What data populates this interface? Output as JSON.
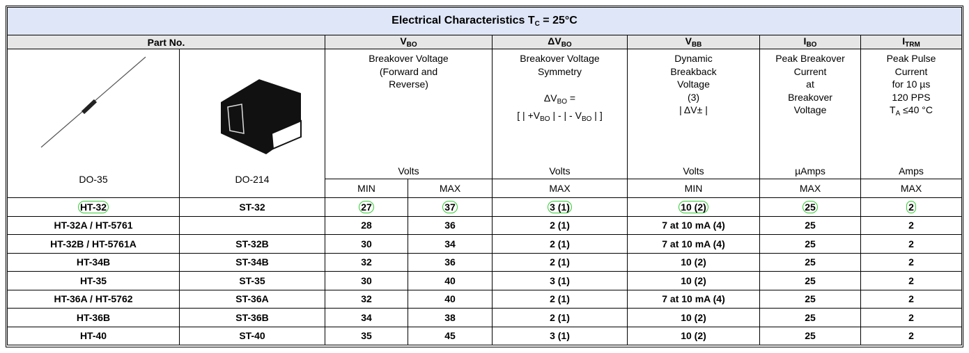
{
  "title": {
    "text": "Electrical Characteristics T",
    "sub": "C",
    "tail": " = 25°C"
  },
  "header": {
    "part_no": "Part No.",
    "columns": [
      {
        "symbol": "V",
        "sub": "BO"
      },
      {
        "symbol": "ΔV",
        "sub": "BO"
      },
      {
        "symbol": "V",
        "sub": "BB"
      },
      {
        "symbol": "I",
        "sub": "BO"
      },
      {
        "symbol": "I",
        "sub": "TRM"
      }
    ]
  },
  "packages": [
    "DO-35",
    "DO-214"
  ],
  "descriptions": [
    [
      [
        [
          {
            "text": "Breakover Voltage"
          }
        ],
        [
          {
            "text": "(Forward and"
          }
        ],
        [
          {
            "text": "Reverse)"
          }
        ]
      ]
    ],
    [
      [
        [
          {
            "text": "Breakover Voltage"
          }
        ],
        [
          {
            "text": "Symmetry"
          }
        ]
      ],
      [
        [
          {
            "text": "ΔV"
          },
          {
            "sub": "BO"
          },
          {
            "text": " ="
          }
        ],
        [
          {
            "text": "[ | +V"
          },
          {
            "sub": "BO"
          },
          {
            "text": " | - | - V"
          },
          {
            "sub": "BO"
          },
          {
            "text": " | ]"
          }
        ]
      ]
    ],
    [
      [
        [
          {
            "text": "Dynamic"
          }
        ],
        [
          {
            "text": "Breakback"
          }
        ],
        [
          {
            "text": "Voltage"
          }
        ],
        [
          {
            "text": "(3)"
          }
        ],
        [
          {
            "text": "| ΔV± |"
          }
        ]
      ]
    ],
    [
      [
        [
          {
            "text": "Peak Breakover"
          }
        ],
        [
          {
            "text": "Current"
          }
        ],
        [
          {
            "text": "at"
          }
        ],
        [
          {
            "text": "Breakover"
          }
        ],
        [
          {
            "text": "Voltage"
          }
        ]
      ]
    ],
    [
      [
        [
          {
            "text": "Peak Pulse"
          }
        ],
        [
          {
            "text": "Current"
          }
        ],
        [
          {
            "text": "for 10 µs"
          }
        ],
        [
          {
            "text": "120 PPS"
          }
        ],
        [
          {
            "text": "T"
          },
          {
            "sub": "A"
          },
          {
            "text": " ≤40 °C"
          }
        ]
      ]
    ]
  ],
  "units": [
    "Volts",
    "Volts",
    "Volts",
    "µAmps",
    "Amps"
  ],
  "limits": [
    "MIN",
    "MAX",
    "MAX",
    "MIN",
    "MAX",
    "MAX"
  ],
  "rows": [
    [
      "HT-32",
      "ST-32",
      27,
      37,
      "3 (1)",
      "10 (2)",
      25,
      2
    ],
    [
      "HT-32A / HT-5761",
      null,
      28,
      36,
      "2 (1)",
      "7 at 10 mA (4)",
      25,
      2
    ],
    [
      "HT-32B / HT-5761A",
      "ST-32B",
      30,
      34,
      "2 (1)",
      "7 at 10 mA (4)",
      25,
      2
    ],
    [
      "HT-34B",
      "ST-34B",
      32,
      36,
      "2 (1)",
      "10 (2)",
      25,
      2
    ],
    [
      "HT-35",
      "ST-35",
      30,
      40,
      "3 (1)",
      "10 (2)",
      25,
      2
    ],
    [
      "HT-36A / HT-5762",
      "ST-36A",
      32,
      40,
      "2 (1)",
      "7 at 10 mA (4)",
      25,
      2
    ],
    [
      "HT-36B",
      "ST-36B",
      34,
      38,
      "2 (1)",
      "10 (2)",
      25,
      2
    ],
    [
      "HT-40",
      "ST-40",
      35,
      45,
      "3 (1)",
      "10 (2)",
      25,
      2
    ]
  ]
}
